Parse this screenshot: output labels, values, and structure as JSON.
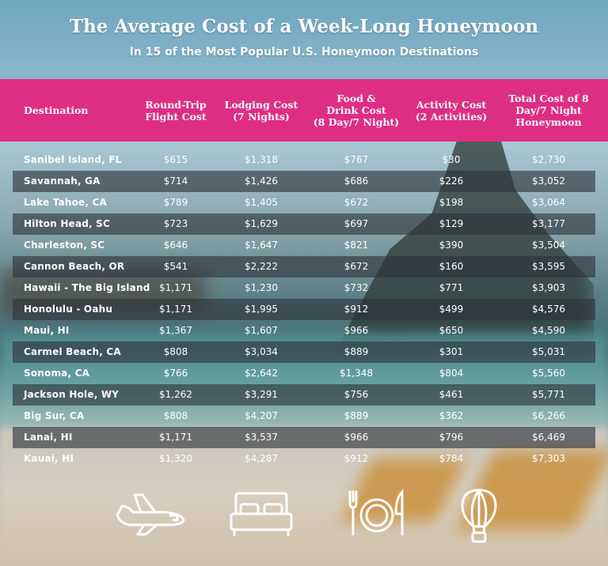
{
  "title": "The Average Cost of a Week-Long Honeymoon",
  "subtitle": "In 15 of the Most Popular U.S. Honeymoon Destinations",
  "colors": {
    "header_band": "#dd2e83",
    "row_shade": "#2d343a",
    "text": "#ffffff"
  },
  "icons": [
    "airplane-icon",
    "bed-icon",
    "dining-plate-icon",
    "hot-air-balloon-icon"
  ],
  "chart_data": {
    "type": "table",
    "columns": [
      "Destination",
      "Round-Trip\nFlight Cost",
      "Lodging Cost\n(7 Nights)",
      "Food &\nDrink Cost\n(8 Day/7 Night)",
      "Activity Cost\n(2 Activities)",
      "Total Cost of 8\nDay/7 Night\nHoneymoon"
    ],
    "rows": [
      [
        "Sanibel Island, FL",
        "$615",
        "$1,318",
        "$767",
        "$30",
        "$2,730"
      ],
      [
        "Savannah, GA",
        "$714",
        "$1,426",
        "$686",
        "$226",
        "$3,052"
      ],
      [
        "Lake Tahoe, CA",
        "$789",
        "$1,405",
        "$672",
        "$198",
        "$3,064"
      ],
      [
        "Hilton Head, SC",
        "$723",
        "$1,629",
        "$697",
        "$129",
        "$3,177"
      ],
      [
        "Charleston, SC",
        "$646",
        "$1,647",
        "$821",
        "$390",
        "$3,504"
      ],
      [
        "Cannon Beach, OR",
        "$541",
        "$2,222",
        "$672",
        "$160",
        "$3,595"
      ],
      [
        "Hawaii - The Big Island",
        "$1,171",
        "$1,230",
        "$732",
        "$771",
        "$3,903"
      ],
      [
        "Honolulu - Oahu",
        "$1,171",
        "$1,995",
        "$912",
        "$499",
        "$4,576"
      ],
      [
        "Maui, HI",
        "$1,367",
        "$1,607",
        "$966",
        "$650",
        "$4,590"
      ],
      [
        "Carmel Beach, CA",
        "$808",
        "$3,034",
        "$889",
        "$301",
        "$5,031"
      ],
      [
        "Sonoma, CA",
        "$766",
        "$2,642",
        "$1,348",
        "$804",
        "$5,560"
      ],
      [
        "Jackson Hole, WY",
        "$1,262",
        "$3,291",
        "$756",
        "$461",
        "$5,771"
      ],
      [
        "Big Sur, CA",
        "$808",
        "$4,207",
        "$889",
        "$362",
        "$6,266"
      ],
      [
        "Lanai, HI",
        "$1,171",
        "$3,537",
        "$966",
        "$796",
        "$6,469"
      ],
      [
        "Kauai, HI",
        "$1,320",
        "$4,287",
        "$912",
        "$784",
        "$7,303"
      ]
    ]
  }
}
